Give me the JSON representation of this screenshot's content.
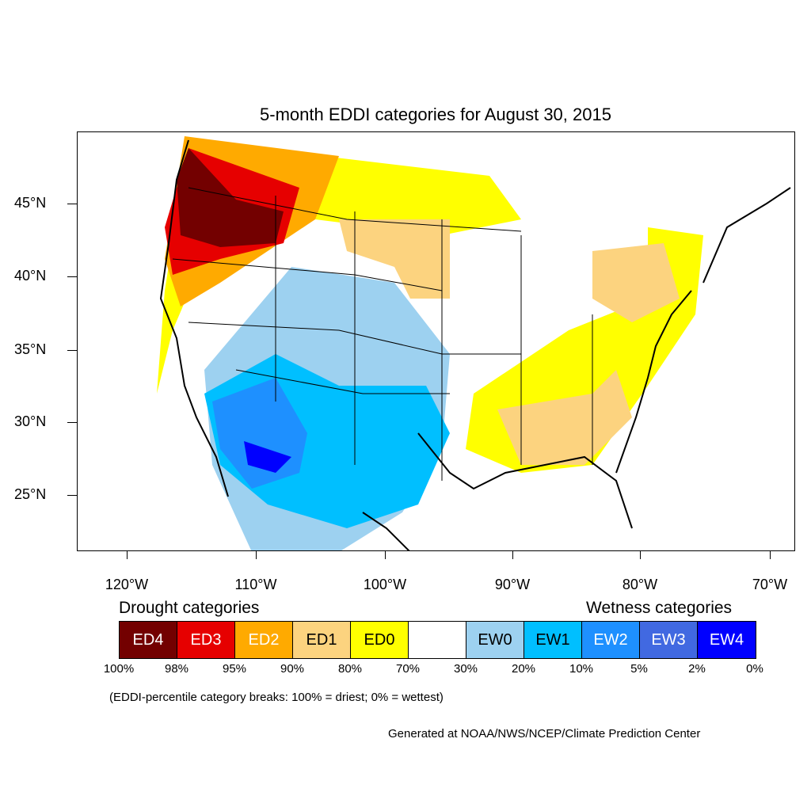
{
  "title": "5-month EDDI categories for August 30, 2015",
  "lat_labels": [
    "45°N",
    "40°N",
    "35°N",
    "30°N",
    "25°N"
  ],
  "lon_labels": [
    "120°W",
    "110°W",
    "100°W",
    "90°W",
    "80°W",
    "70°W"
  ],
  "legend": {
    "drought_heading": "Drought categories",
    "wetness_heading": "Wetness categories",
    "categories": [
      {
        "label": "ED4",
        "color": "#730000",
        "text_color": "#ffffff"
      },
      {
        "label": "ED3",
        "color": "#e60000",
        "text_color": "#ffffff"
      },
      {
        "label": "ED2",
        "color": "#ffaa00",
        "text_color": "#ffffff"
      },
      {
        "label": "ED1",
        "color": "#fcd37f",
        "text_color": "#000000"
      },
      {
        "label": "ED0",
        "color": "#ffff00",
        "text_color": "#000000"
      },
      {
        "label": "",
        "color": "#ffffff",
        "text_color": "#000000"
      },
      {
        "label": "EW0",
        "color": "#9dd1f0",
        "text_color": "#000000"
      },
      {
        "label": "EW1",
        "color": "#00bfff",
        "text_color": "#000000"
      },
      {
        "label": "EW2",
        "color": "#1e90ff",
        "text_color": "#ffffff"
      },
      {
        "label": "EW3",
        "color": "#4169e1",
        "text_color": "#ffffff"
      },
      {
        "label": "EW4",
        "color": "#0000ff",
        "text_color": "#ffffff"
      }
    ],
    "breaks": [
      "100%",
      "98%",
      "95%",
      "90%",
      "80%",
      "70%",
      "30%",
      "20%",
      "10%",
      "5%",
      "2%",
      "0%"
    ]
  },
  "note": "(EDDI-percentile category breaks: 100% = driest; 0% = wettest)",
  "credit": "Generated at NOAA/NWS/NCEP/Climate Prediction Center"
}
